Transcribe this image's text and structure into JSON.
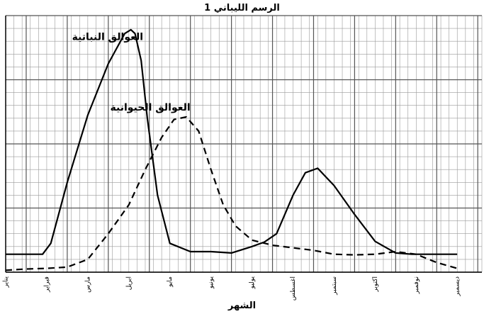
{
  "chart_data": {
    "type": "line",
    "title": "الرسم الليباني 1",
    "xlabel": "الشهر",
    "ylabel": "",
    "categories": [
      "يناير",
      "فبراير",
      "مارس",
      "ابريل",
      "مايو",
      "يونيو",
      "يوليو",
      "اغسطس",
      "سبتمبر",
      "اكتوبر",
      "نوفمبر",
      "ديسمبر"
    ],
    "ylim": [
      0,
      4
    ],
    "grid": true,
    "series": [
      {
        "name": "العوالق النباتية",
        "style": "solid",
        "color": "#000000",
        "x": [
          1,
          1.9,
          2.1,
          2.5,
          3.0,
          3.5,
          3.9,
          4.05,
          4.15,
          4.3,
          4.45,
          4.7,
          5.0,
          5.5,
          6.0,
          6.5,
          7.0,
          7.3,
          7.6,
          8.0,
          8.3,
          8.6,
          9.0,
          9.5,
          10.0,
          10.5,
          10.9,
          11.5,
          12.0
        ],
        "y": [
          0.28,
          0.28,
          0.45,
          1.4,
          2.45,
          3.25,
          3.72,
          3.78,
          3.72,
          3.3,
          2.4,
          1.2,
          0.45,
          0.32,
          0.32,
          0.3,
          0.4,
          0.47,
          0.6,
          1.2,
          1.55,
          1.62,
          1.35,
          0.9,
          0.48,
          0.3,
          0.28,
          0.28,
          0.28
        ]
      },
      {
        "name": "العوالق الحيوانية",
        "style": "dashed",
        "color": "#000000",
        "x": [
          1,
          1.5,
          2.0,
          2.5,
          3.0,
          3.5,
          4.0,
          4.4,
          4.8,
          5.1,
          5.4,
          5.7,
          6.0,
          6.3,
          6.6,
          7.0,
          7.5,
          8.0,
          8.5,
          9.0,
          9.5,
          10.0,
          10.5,
          11.0,
          11.5,
          12.0
        ],
        "y": [
          0.03,
          0.05,
          0.06,
          0.08,
          0.2,
          0.6,
          1.05,
          1.6,
          2.1,
          2.38,
          2.42,
          2.2,
          1.6,
          1.05,
          0.72,
          0.5,
          0.42,
          0.38,
          0.34,
          0.28,
          0.27,
          0.28,
          0.32,
          0.28,
          0.15,
          0.06
        ]
      }
    ]
  }
}
